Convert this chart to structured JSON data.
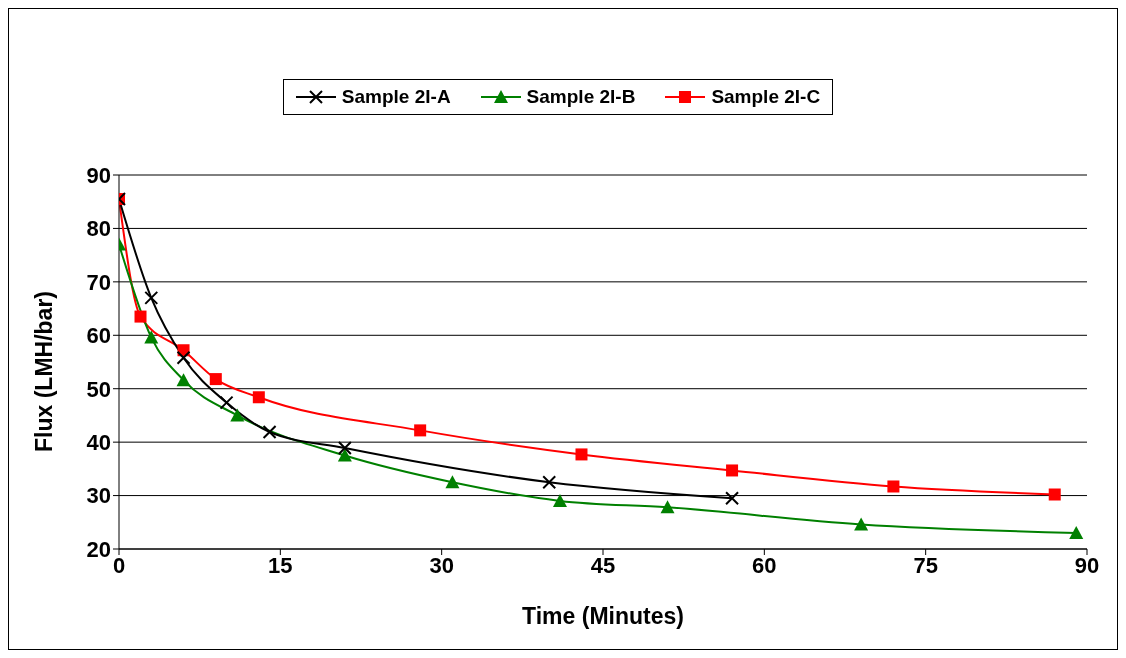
{
  "chart_data": {
    "type": "line",
    "xlabel": "Time (Minutes)",
    "ylabel": "Flux (LMH/bar)",
    "xlim": [
      0,
      90
    ],
    "xticks": [
      0,
      15,
      30,
      45,
      60,
      75,
      90
    ],
    "ylim": [
      20,
      90
    ],
    "yticks": [
      20,
      30,
      40,
      50,
      60,
      70,
      80,
      90
    ],
    "grid": "y",
    "legend": "top",
    "line_style": "solid",
    "series": [
      {
        "name": "Sample 2I-A",
        "color": "#000000",
        "marker": "cross",
        "x": [
          0,
          3,
          6,
          10,
          14,
          21,
          40,
          57
        ],
        "values": [
          85.5,
          67,
          55.8,
          47.4,
          41.9,
          38.9,
          32.5,
          29.5
        ]
      },
      {
        "name": "Sample 2I-B",
        "color": "#008000",
        "marker": "triangle",
        "x": [
          0,
          3,
          6,
          11,
          21,
          31,
          41,
          51,
          69,
          89
        ],
        "values": [
          77,
          59.6,
          51.6,
          45,
          37.5,
          32.5,
          29,
          27.8,
          24.6,
          23
        ]
      },
      {
        "name": "Sample 2I-C",
        "color": "#ff0000",
        "marker": "square",
        "x": [
          0,
          2,
          6,
          9,
          13,
          28,
          43,
          57,
          72,
          87
        ],
        "values": [
          85.5,
          63.5,
          57.2,
          51.8,
          48.4,
          42.2,
          37.7,
          34.7,
          31.7,
          30.2
        ]
      }
    ]
  }
}
